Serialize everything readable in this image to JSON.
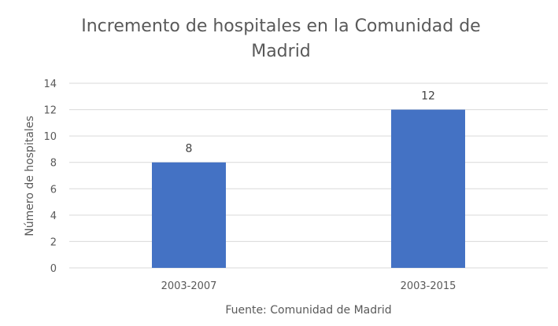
{
  "chart_data": {
    "type": "bar",
    "title_lines": [
      "Incremento de hospitales en la Comunidad de",
      "Madrid"
    ],
    "categories": [
      "2003-2007",
      "2003-2015"
    ],
    "values": [
      8,
      12
    ],
    "data_labels": [
      "8",
      "12"
    ],
    "xlabel": "Fuente: Comunidad de Madrid",
    "ylabel": "Número de hospitales",
    "ylim": [
      0,
      14
    ],
    "yticks": [
      "0",
      "2",
      "4",
      "6",
      "8",
      "10",
      "12",
      "14"
    ],
    "grid": true,
    "bar_color": "#4472C4"
  }
}
